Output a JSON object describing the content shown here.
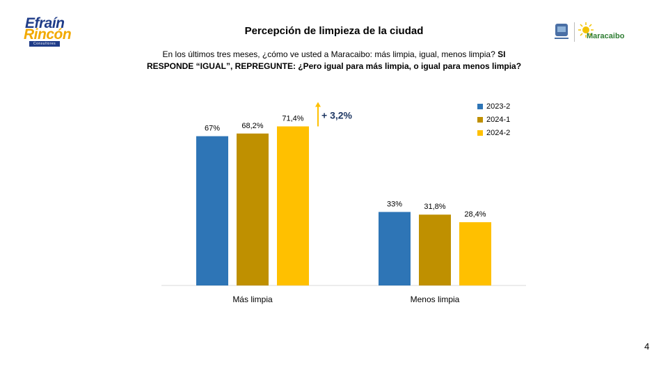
{
  "logo": {
    "line1": "Efraín",
    "line2": "Rincón",
    "sub": "Consultores"
  },
  "brand_right": {
    "name": "Maracaibo"
  },
  "page_number": "4",
  "colors": {
    "s2023_2": "#2e75b6",
    "s2024_1": "#bf9000",
    "s2024_2": "#ffc000",
    "arrow": "#ffc000",
    "delta_text": "#1f3864"
  },
  "chart_data": {
    "type": "bar",
    "title": "Percepción de limpieza de la ciudad",
    "subtitle_plain": "En los últimos tres meses, ¿cómo ve usted a Maracaibo: más limpia, igual, menos limpia?",
    "subtitle_bold": "SI RESPONDE “IGUAL”, REPREGUNTE: ¿Pero igual para más limpia, o igual para menos limpia?",
    "categories": [
      "Más limpia",
      "Menos limpia"
    ],
    "series": [
      {
        "name": "2023-2",
        "values": [
          67,
          33
        ],
        "labels": [
          "67%",
          "33%"
        ]
      },
      {
        "name": "2024-1",
        "values": [
          68.2,
          31.8
        ],
        "labels": [
          "68,2%",
          "31,8%"
        ]
      },
      {
        "name": "2024-2",
        "values": [
          71.4,
          28.4
        ],
        "labels": [
          "71,4%",
          "28,4%"
        ]
      }
    ],
    "ylim": [
      0,
      100
    ],
    "annotation": "+ 3,2%",
    "legend_position": "top-right",
    "grid": false
  }
}
